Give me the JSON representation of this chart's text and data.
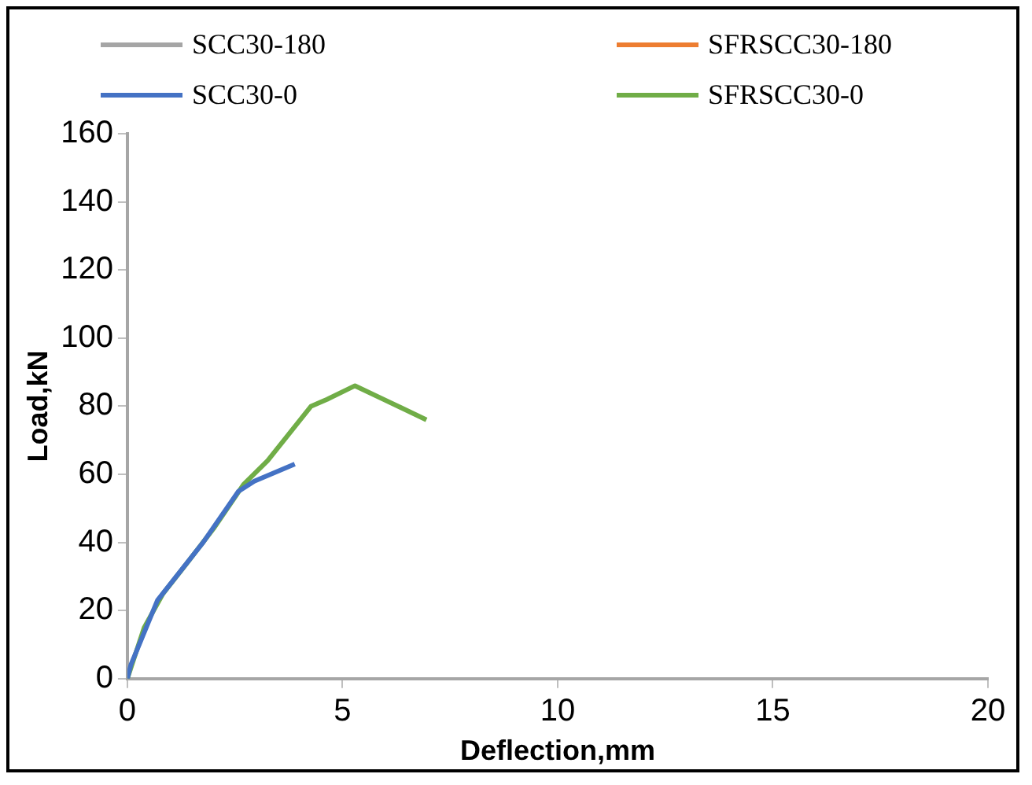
{
  "chart_data": {
    "type": "line",
    "xlabel": "Deflection,mm",
    "ylabel": "Load,kN",
    "xlim": [
      0,
      20
    ],
    "xticks": [
      0,
      5,
      10,
      15,
      20
    ],
    "ylim": [
      0,
      160
    ],
    "yticks": [
      0,
      20,
      40,
      60,
      80,
      100,
      120,
      140,
      160
    ],
    "grid": false,
    "legend": "top",
    "marker": "none",
    "series": [
      {
        "name": "SCC30-180",
        "color": "#a5a5a5"
      },
      {
        "name": "SFRSCC30-180",
        "color": "#ed7d31"
      },
      {
        "name": "SCC30-0",
        "color": "#4472c4",
        "x": [
          0,
          0.08,
          0.7,
          1.76,
          2.58,
          2.95,
          3.89
        ],
        "values": [
          0,
          4,
          23,
          40,
          55,
          58,
          63
        ]
      },
      {
        "name": "SFRSCC30-0",
        "color": "#70ad47",
        "x": [
          0,
          0.39,
          0.83,
          1.39,
          2.0,
          2.7,
          3.26,
          4.27,
          4.64,
          5.29,
          6.95
        ],
        "values": [
          0,
          15,
          25,
          34,
          44,
          57,
          64,
          80,
          82,
          86,
          76
        ]
      }
    ]
  }
}
